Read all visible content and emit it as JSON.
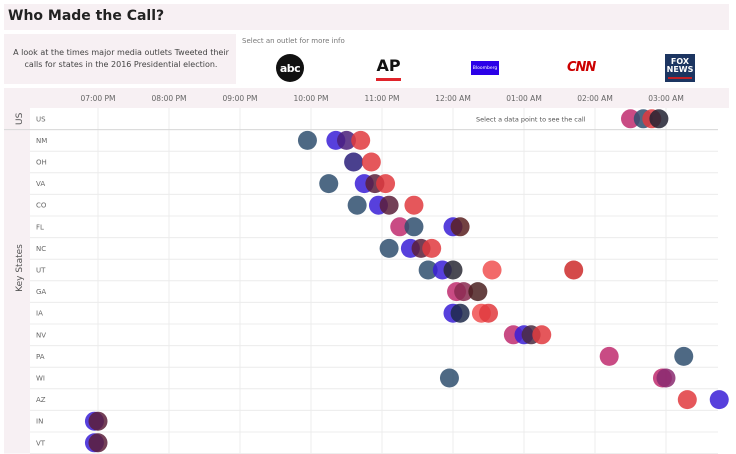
{
  "header": {
    "title": "Who Made the Call?",
    "subtitle": "A look at the times major media outlets Tweeted their calls for states in the 2016 Presidential election.",
    "outlet_prompt": "Select an outlet for more info"
  },
  "outlets": [
    {
      "name": "ABC",
      "logo_text": "abc",
      "color": "#1f4e79"
    },
    {
      "name": "AP",
      "logo_text": "AP",
      "color": "#e0242b"
    },
    {
      "name": "Bloomberg",
      "logo_text": "Bloomberg",
      "color": "#2b00e8"
    },
    {
      "name": "CNN",
      "logo_text": "CNN",
      "color": "#cc0000"
    },
    {
      "name": "Fox News",
      "logo_text": "FOX NEWS",
      "color": "#1c3561"
    }
  ],
  "chart_data": {
    "type": "scatter",
    "hint": "Select a data point to see the call",
    "x_ticks": [
      "07:00 PM",
      "08:00 PM",
      "09:00 PM",
      "10:00 PM",
      "11:00 PM",
      "12:00 AM",
      "01:00 AM",
      "02:00 AM",
      "03:00 AM"
    ],
    "xlim_hours": [
      18.3,
      27.8
    ],
    "groups": [
      {
        "label": "US",
        "rows": [
          "US"
        ]
      },
      {
        "label": "Key States",
        "rows": [
          "NM",
          "OH",
          "VA",
          "CO",
          "FL",
          "NC",
          "UT",
          "GA",
          "IA",
          "NV",
          "PA",
          "WI",
          "AZ",
          "IN",
          "VT"
        ]
      }
    ],
    "grid": true,
    "points": [
      {
        "row": "US",
        "t": 26.5,
        "color": "#c02c6e"
      },
      {
        "row": "US",
        "t": 26.68,
        "color": "#2f4f6f"
      },
      {
        "row": "US",
        "t": 26.8,
        "color": "#e03a3e"
      },
      {
        "row": "US",
        "t": 26.9,
        "color": "#222233"
      },
      {
        "row": "NM",
        "t": 21.95,
        "color": "#2f4f6f"
      },
      {
        "row": "NM",
        "t": 22.35,
        "color": "#3a1fd6"
      },
      {
        "row": "NM",
        "t": 22.5,
        "color": "#4a1f7a"
      },
      {
        "row": "NM",
        "t": 22.7,
        "color": "#e03a3e"
      },
      {
        "row": "OH",
        "t": 22.6,
        "color": "#2a1f7a"
      },
      {
        "row": "OH",
        "t": 22.85,
        "color": "#e03a3e"
      },
      {
        "row": "VA",
        "t": 22.25,
        "color": "#2f4f6f"
      },
      {
        "row": "VA",
        "t": 22.75,
        "color": "#3a1fd6"
      },
      {
        "row": "VA",
        "t": 22.9,
        "color": "#5a1f3a"
      },
      {
        "row": "VA",
        "t": 23.05,
        "color": "#e03a3e"
      },
      {
        "row": "CO",
        "t": 22.65,
        "color": "#2f4f6f"
      },
      {
        "row": "CO",
        "t": 22.95,
        "color": "#3a1fd6"
      },
      {
        "row": "CO",
        "t": 23.1,
        "color": "#5a1f3a"
      },
      {
        "row": "CO",
        "t": 23.45,
        "color": "#e03a3e"
      },
      {
        "row": "FL",
        "t": 23.25,
        "color": "#c02c6e"
      },
      {
        "row": "FL",
        "t": 23.45,
        "color": "#2f4f6f"
      },
      {
        "row": "FL",
        "t": 24.0,
        "color": "#3a1fd6"
      },
      {
        "row": "FL",
        "t": 24.1,
        "color": "#5a2020"
      },
      {
        "row": "NC",
        "t": 23.1,
        "color": "#2f4f6f"
      },
      {
        "row": "NC",
        "t": 23.4,
        "color": "#3a1fd6"
      },
      {
        "row": "NC",
        "t": 23.55,
        "color": "#5a1f3a"
      },
      {
        "row": "NC",
        "t": 23.7,
        "color": "#e03a3e"
      },
      {
        "row": "UT",
        "t": 23.65,
        "color": "#2f4f6f"
      },
      {
        "row": "UT",
        "t": 23.85,
        "color": "#3a1fd6"
      },
      {
        "row": "UT",
        "t": 24.0,
        "color": "#2a2a35"
      },
      {
        "row": "UT",
        "t": 24.55,
        "color": "#f05050"
      },
      {
        "row": "UT",
        "t": 25.7,
        "color": "#cc2a2a"
      },
      {
        "row": "GA",
        "t": 24.05,
        "color": "#c02c6e"
      },
      {
        "row": "GA",
        "t": 24.15,
        "color": "#8a2a50"
      },
      {
        "row": "GA",
        "t": 24.35,
        "color": "#4a2020"
      },
      {
        "row": "IA",
        "t": 24.0,
        "color": "#3a1fd6"
      },
      {
        "row": "IA",
        "t": 24.1,
        "color": "#1f2a4a"
      },
      {
        "row": "IA",
        "t": 24.4,
        "color": "#f05050"
      },
      {
        "row": "IA",
        "t": 24.5,
        "color": "#e03a3e"
      },
      {
        "row": "NV",
        "t": 24.85,
        "color": "#c02c6e"
      },
      {
        "row": "NV",
        "t": 25.0,
        "color": "#3a1fd6"
      },
      {
        "row": "NV",
        "t": 25.1,
        "color": "#4a2a40"
      },
      {
        "row": "NV",
        "t": 25.25,
        "color": "#e03a3e"
      },
      {
        "row": "PA",
        "t": 26.2,
        "color": "#c02c6e"
      },
      {
        "row": "PA",
        "t": 27.25,
        "color": "#2f4f6f"
      },
      {
        "row": "WI",
        "t": 23.95,
        "color": "#2f4f6f"
      },
      {
        "row": "WI",
        "t": 26.95,
        "color": "#c02c6e"
      },
      {
        "row": "WI",
        "t": 27.0,
        "color": "#8a2a70"
      },
      {
        "row": "AZ",
        "t": 27.3,
        "color": "#e03a3e"
      },
      {
        "row": "AZ",
        "t": 27.75,
        "color": "#3a1fd6"
      },
      {
        "row": "IN",
        "t": 18.95,
        "color": "#3a1fd6"
      },
      {
        "row": "IN",
        "t": 19.0,
        "color": "#5a1f3a"
      },
      {
        "row": "VT",
        "t": 18.95,
        "color": "#3a1fd6"
      },
      {
        "row": "VT",
        "t": 19.0,
        "color": "#5a1f3a"
      }
    ]
  }
}
